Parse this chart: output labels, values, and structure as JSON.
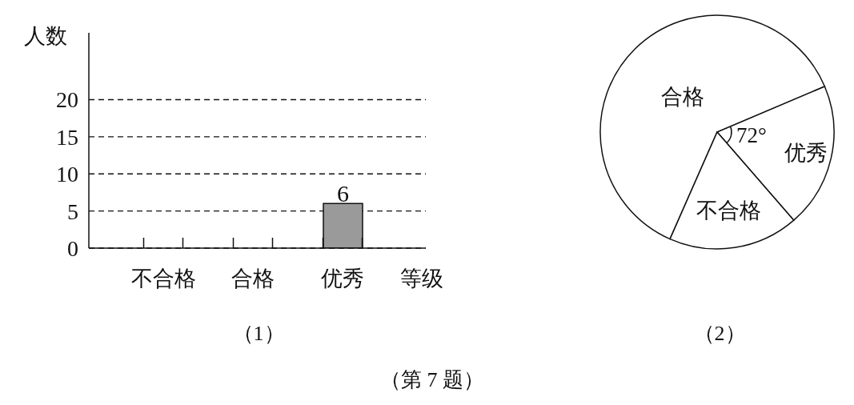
{
  "chart_data": [
    {
      "type": "bar",
      "categories": [
        "不合格",
        "合格",
        "优秀"
      ],
      "values": [
        null,
        null,
        6
      ],
      "color": "#9a9a9a",
      "xlabel": "等级",
      "ylabel": "人数",
      "ylim": [
        0,
        29
      ],
      "yticks": [
        0,
        5,
        10,
        15,
        20
      ],
      "grid": "y",
      "data_labels": true,
      "annotations": [
        "（1）",
        "（第 7 题）"
      ]
    },
    {
      "type": "pie",
      "categories": [
        "合格",
        "优秀",
        "不合格"
      ],
      "values": [
        62,
        20,
        18
      ],
      "colors": [
        "#ffffff",
        "#ffffff",
        "#ffffff"
      ],
      "annotations": [
        "72°",
        "（2）"
      ]
    }
  ]
}
